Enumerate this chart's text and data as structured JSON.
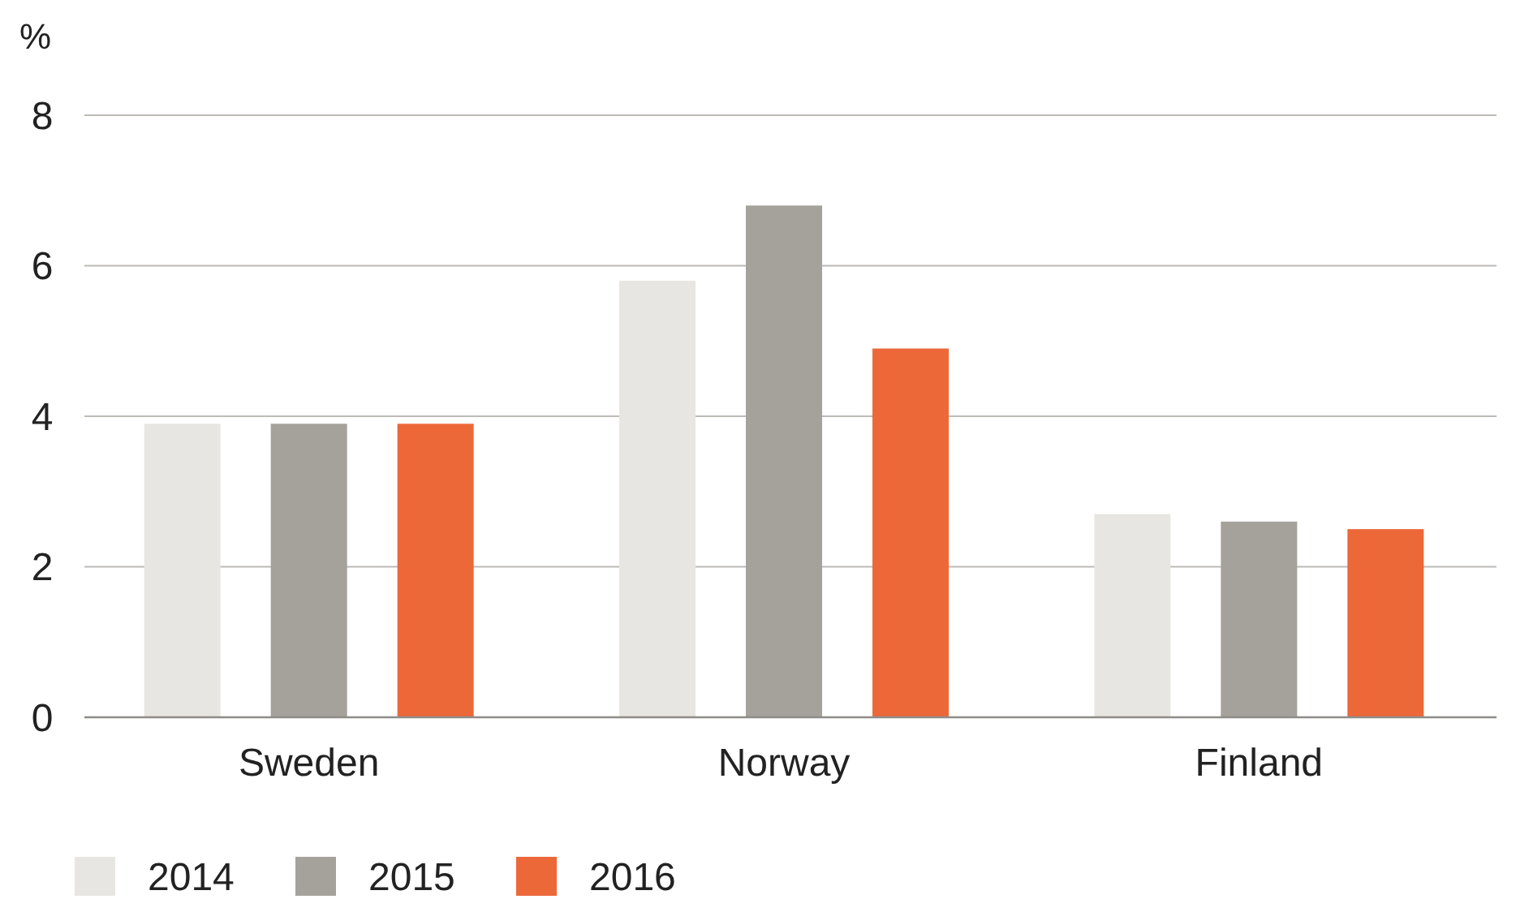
{
  "chart_data": {
    "type": "bar",
    "ylabel": "%",
    "categories": [
      "Sweden",
      "Norway",
      "Finland"
    ],
    "series": [
      {
        "name": "2014",
        "color": "#e8e6e2",
        "values": [
          3.9,
          5.8,
          2.7
        ]
      },
      {
        "name": "2015",
        "color": "#a5a19b",
        "values": [
          3.9,
          6.8,
          2.6
        ]
      },
      {
        "name": "2016",
        "color": "#ec6839",
        "values": [
          3.9,
          4.9,
          2.5
        ]
      }
    ],
    "ylim": [
      0,
      8
    ],
    "yticks": [
      0,
      2,
      4,
      6,
      8
    ],
    "grid": "y",
    "legend": "bottom left"
  }
}
